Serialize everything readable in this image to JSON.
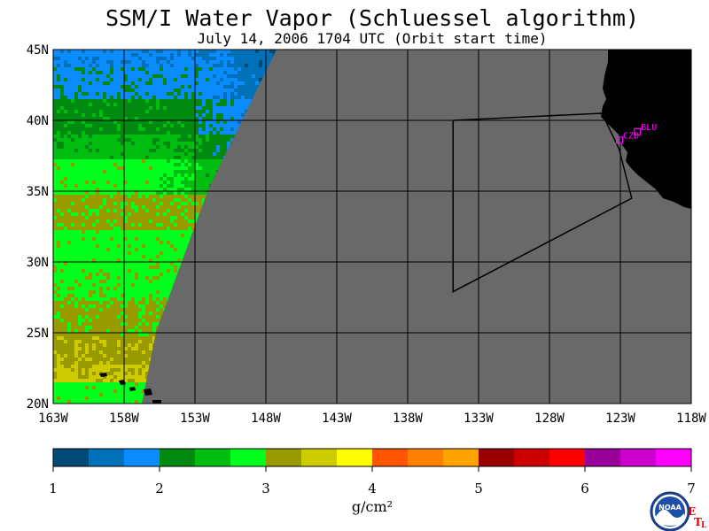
{
  "header": {
    "title": "SSM/I Water Vapor (Schluessel algorithm)",
    "subtitle": "July 14, 2006  1704 UTC  (Orbit start time)"
  },
  "map": {
    "lon_range": [
      -163,
      -118
    ],
    "lat_range": [
      20,
      45
    ],
    "lon_ticks": [
      {
        "value": -163,
        "label": "163W"
      },
      {
        "value": -158,
        "label": "158W"
      },
      {
        "value": -153,
        "label": "153W"
      },
      {
        "value": -148,
        "label": "148W"
      },
      {
        "value": -143,
        "label": "143W"
      },
      {
        "value": -138,
        "label": "138W"
      },
      {
        "value": -133,
        "label": "133W"
      },
      {
        "value": -128,
        "label": "128W"
      },
      {
        "value": -123,
        "label": "123W"
      },
      {
        "value": -118,
        "label": "118W"
      }
    ],
    "lat_ticks": [
      {
        "value": 45,
        "label": "45N"
      },
      {
        "value": 40,
        "label": "40N"
      },
      {
        "value": 35,
        "label": "35N"
      },
      {
        "value": 30,
        "label": "30N"
      },
      {
        "value": 25,
        "label": "25N"
      },
      {
        "value": 20,
        "label": "20N"
      }
    ],
    "no_data_color": "#696969",
    "land_color": "#000000",
    "grid_color": "#000000",
    "box_outline": [
      {
        "lon": -134.8,
        "lat": 40.0
      },
      {
        "lon": -134.8,
        "lat": 27.9
      },
      {
        "lon": -122.2,
        "lat": 34.5
      },
      {
        "lon": -123.1,
        "lat": 38.0
      },
      {
        "lon": -124.3,
        "lat": 40.5
      },
      {
        "lon": -134.8,
        "lat": 40.0
      }
    ],
    "stations": [
      {
        "id": "CZD",
        "label": "CZD",
        "lon": -123.06,
        "lat": 38.6
      },
      {
        "id": "BLU",
        "label": "BLU",
        "lon": -121.8,
        "lat": 39.2
      }
    ],
    "station_color": "#ff00ff"
  },
  "colorbar": {
    "unit": "g/cm²",
    "bins": [
      "#004a75",
      "#0070b8",
      "#0a8cff",
      "#008a10",
      "#00bd10",
      "#00ff1c",
      "#999900",
      "#cccc00",
      "#ffff00",
      "#ff5500",
      "#ff7f00",
      "#ffa300",
      "#990000",
      "#cc0000",
      "#ff0000",
      "#990099",
      "#cc00cc",
      "#ff00ff"
    ],
    "labels": [
      "1",
      "2",
      "3",
      "4",
      "5",
      "6",
      "7"
    ]
  },
  "logos": {
    "noaa": "NOAA",
    "etl": [
      "E",
      "T",
      "L"
    ]
  }
}
